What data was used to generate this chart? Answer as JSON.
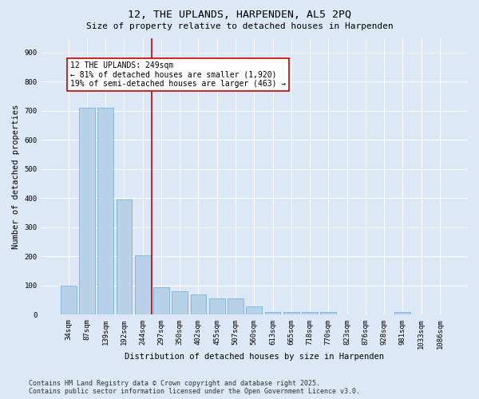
{
  "title_line1": "12, THE UPLANDS, HARPENDEN, AL5 2PQ",
  "title_line2": "Size of property relative to detached houses in Harpenden",
  "xlabel": "Distribution of detached houses by size in Harpenden",
  "ylabel": "Number of detached properties",
  "bar_color": "#b8d0e8",
  "bar_edge_color": "#6aaad4",
  "vline_color": "#cc0000",
  "annotation_text": "12 THE UPLANDS: 249sqm\n← 81% of detached houses are smaller (1,920)\n19% of semi-detached houses are larger (463) →",
  "categories": [
    "34sqm",
    "87sqm",
    "139sqm",
    "192sqm",
    "244sqm",
    "297sqm",
    "350sqm",
    "402sqm",
    "455sqm",
    "507sqm",
    "560sqm",
    "613sqm",
    "665sqm",
    "718sqm",
    "770sqm",
    "823sqm",
    "876sqm",
    "928sqm",
    "981sqm",
    "1033sqm",
    "1086sqm"
  ],
  "values": [
    100,
    710,
    710,
    395,
    205,
    95,
    80,
    70,
    55,
    55,
    30,
    10,
    10,
    10,
    10,
    0,
    0,
    0,
    10,
    0,
    0
  ],
  "ylim": [
    0,
    950
  ],
  "yticks": [
    0,
    100,
    200,
    300,
    400,
    500,
    600,
    700,
    800,
    900
  ],
  "background_color": "#dce8f5",
  "plot_bg_color": "#dce8f5",
  "footer_text": "Contains HM Land Registry data © Crown copyright and database right 2025.\nContains public sector information licensed under the Open Government Licence v3.0.",
  "title_fontsize": 9.5,
  "subtitle_fontsize": 8,
  "axis_label_fontsize": 7.5,
  "tick_fontsize": 6.5,
  "annotation_fontsize": 7,
  "footer_fontsize": 6,
  "vline_bar_index": 4
}
